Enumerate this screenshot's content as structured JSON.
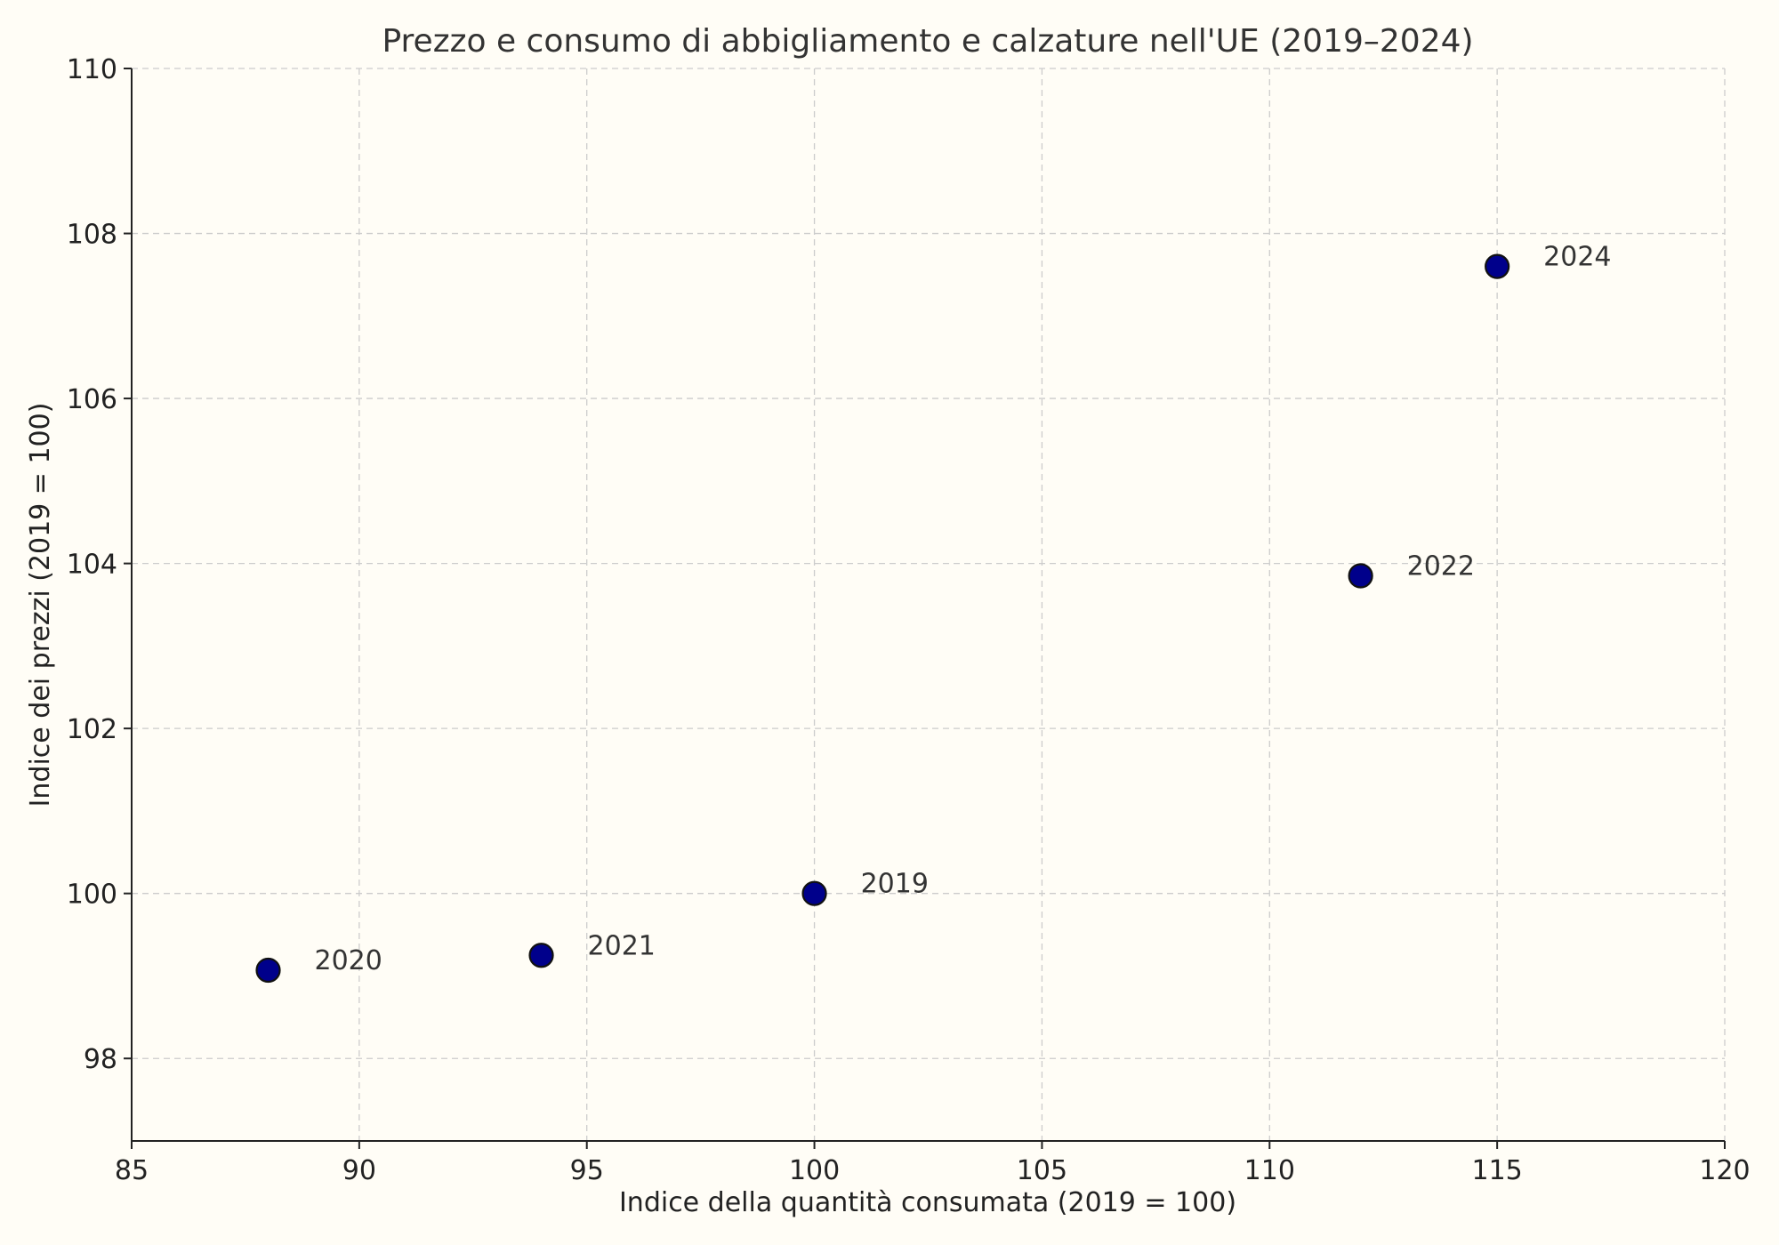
{
  "chart_data": {
    "type": "scatter",
    "title": "Prezzo e consumo di abbigliamento e calzature nell'UE (2019–2024)",
    "xlabel": "Indice della quantità consumata (2019 = 100)",
    "ylabel": "Indice dei prezzi (2019 = 100)",
    "xlim": [
      85,
      120
    ],
    "ylim": [
      97,
      110
    ],
    "xticks": [
      85,
      90,
      95,
      100,
      105,
      110,
      115,
      120
    ],
    "yticks": [
      98,
      100,
      102,
      104,
      106,
      108,
      110
    ],
    "grid": true,
    "points": [
      {
        "label": "2019",
        "x": 100,
        "y": 100.0
      },
      {
        "label": "2020",
        "x": 88,
        "y": 99.07
      },
      {
        "label": "2021",
        "x": 94,
        "y": 99.25
      },
      {
        "label": "2022",
        "x": 112,
        "y": 103.85
      },
      {
        "label": "2024",
        "x": 115,
        "y": 107.6
      }
    ],
    "colors": {
      "marker_fill": "#00008b",
      "marker_edge": "#111111",
      "background": "#fffdf6"
    }
  }
}
